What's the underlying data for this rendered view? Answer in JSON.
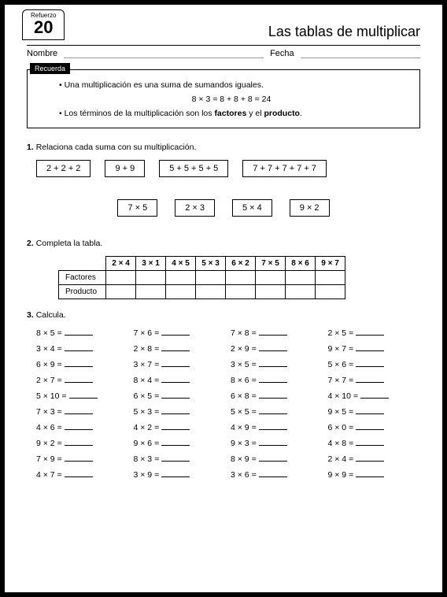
{
  "refuerzo": {
    "label": "Refuerzo",
    "number": "20"
  },
  "title": "Las tablas de multiplicar",
  "name_label": "Nombre",
  "date_label": "Fecha",
  "recuerda": {
    "tab": "Recuerda",
    "line1_a": "Una multiplicación es una suma de sumandos iguales.",
    "eq": "8 × 3 = 8 + 8 + 8 = 24",
    "line2_a": "Los términos de la multiplicación son los ",
    "line2_b": "factores",
    "line2_c": " y el ",
    "line2_d": "producto",
    "line2_e": "."
  },
  "s1": {
    "num": "1.",
    "text": "Relaciona cada suma con su multiplicación.",
    "sums": [
      "2 + 2 + 2",
      "9 + 9",
      "5 + 5 + 5 + 5",
      "7 + 7 + 7 + 7 + 7"
    ],
    "prods": [
      "7 × 5",
      "2 × 3",
      "5 × 4",
      "9 × 2"
    ]
  },
  "s2": {
    "num": "2.",
    "text": "Completa la tabla.",
    "headers": [
      "2 × 4",
      "3 × 1",
      "4 × 5",
      "5 × 3",
      "6 × 2",
      "7 × 5",
      "8 × 6",
      "9 × 7"
    ],
    "row1": "Factores",
    "row2": "Producto"
  },
  "s3": {
    "num": "3.",
    "text": "Calcula.",
    "items": [
      "8 × 5 =",
      "7 × 6 =",
      "7 × 8 =",
      "2 × 5 =",
      "3 × 4 =",
      "2 × 8 =",
      "2 × 9 =",
      "9 × 7 =",
      "6 × 9 =",
      "3 × 7 =",
      "3 × 5 =",
      "5 × 6 =",
      "2 × 7 =",
      "8 × 4 =",
      "8 × 6 =",
      "7 × 7 =",
      "5 × 10 =",
      "6 × 5 =",
      "6 × 8 =",
      "4 × 10 =",
      "7 × 3 =",
      "5 × 3 =",
      "5 × 5 =",
      "9 × 5 =",
      "4 × 6 =",
      "4 × 2 =",
      "4 × 9 =",
      "6 × 0 =",
      "9 × 2 =",
      "9 × 6 =",
      "9 × 3 =",
      "4 × 8 =",
      "7 × 9 =",
      "8 × 3 =",
      "8 × 9 =",
      "2 × 4 =",
      "4 × 7 =",
      "3 × 9 =",
      "3 × 6 =",
      "9 × 9 ="
    ]
  }
}
